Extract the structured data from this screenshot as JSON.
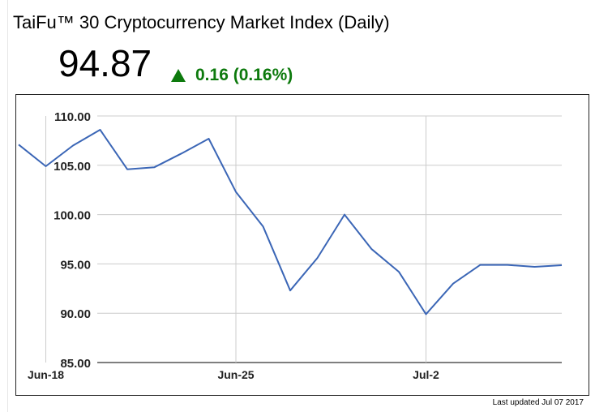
{
  "header": {
    "title": "TaiFu™ 30 Cryptocurrency Market Index (Daily)",
    "price": "94.87",
    "change": "0.16 (0.16%)",
    "change_icon": "triangle-up-icon",
    "change_color": "#0d7a0d"
  },
  "chart_data": {
    "type": "line",
    "title": "",
    "xlabel": "",
    "ylabel": "",
    "ylim": [
      85,
      110
    ],
    "yticks": [
      110,
      105,
      100,
      95,
      90,
      85
    ],
    "ytick_labels": [
      "110.00",
      "105.00",
      "100.00",
      "95.00",
      "90.00",
      "85.00"
    ],
    "xtick_labels": [
      "Jun-18",
      "Jun-25",
      "Jul-2"
    ],
    "xtick_positions": [
      "2017-06-18",
      "2017-06-25",
      "2017-07-02"
    ],
    "grid": true,
    "line_color": "#3b66b6",
    "series": [
      {
        "name": "",
        "x": [
          "2017-06-17",
          "2017-06-18",
          "2017-06-19",
          "2017-06-20",
          "2017-06-21",
          "2017-06-22",
          "2017-06-23",
          "2017-06-24",
          "2017-06-25",
          "2017-06-26",
          "2017-06-27",
          "2017-06-28",
          "2017-06-29",
          "2017-06-30",
          "2017-07-01",
          "2017-07-02",
          "2017-07-03",
          "2017-07-04",
          "2017-07-05",
          "2017-07-06",
          "2017-07-07"
        ],
        "values": [
          107.1,
          104.9,
          107.0,
          108.6,
          104.6,
          104.8,
          106.2,
          107.7,
          102.3,
          98.8,
          92.3,
          95.6,
          100.0,
          96.5,
          94.2,
          89.9,
          93.0,
          94.9,
          94.9,
          94.7,
          94.87
        ]
      }
    ]
  },
  "footer": {
    "updated": "Last updated Jul 07 2017"
  }
}
